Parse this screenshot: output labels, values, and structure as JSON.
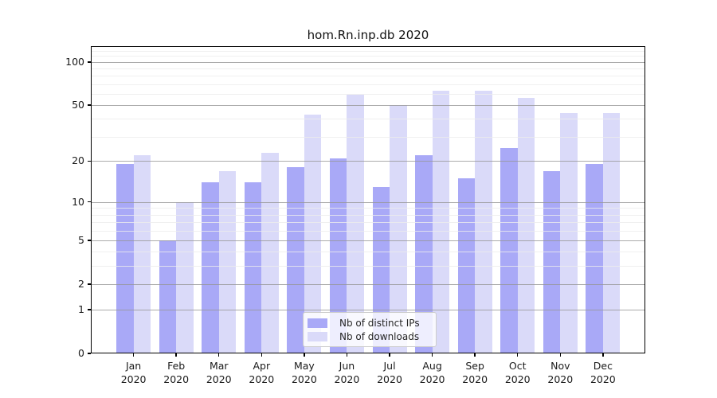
{
  "chart_data": {
    "type": "bar",
    "title": "hom.Rn.inp.db 2020",
    "categories": [
      "Jan",
      "Feb",
      "Mar",
      "Apr",
      "May",
      "Jun",
      "Jul",
      "Aug",
      "Sep",
      "Oct",
      "Nov",
      "Dec"
    ],
    "x_tick_second_line": "2020",
    "series": [
      {
        "name": "Nb of distinct IPs",
        "color": "#a9a9f7",
        "values": [
          19,
          5,
          14,
          14,
          18,
          21,
          13,
          22,
          15,
          25,
          17,
          19
        ]
      },
      {
        "name": "Nb of downloads",
        "color": "#dadaf9",
        "values": [
          22,
          10,
          17,
          23,
          43,
          59,
          50,
          63,
          63,
          56,
          44,
          44
        ]
      }
    ],
    "yscale": "log1p",
    "ylim": [
      0,
      130
    ],
    "y_major_ticks": [
      100,
      50,
      20,
      10,
      5,
      2,
      1,
      0
    ],
    "y_minor_gridlines": [
      3,
      4,
      6,
      7,
      8,
      9,
      30,
      40,
      60,
      70,
      80,
      90,
      110,
      120,
      130
    ],
    "grid": true,
    "legend_position": "lower center inside"
  }
}
